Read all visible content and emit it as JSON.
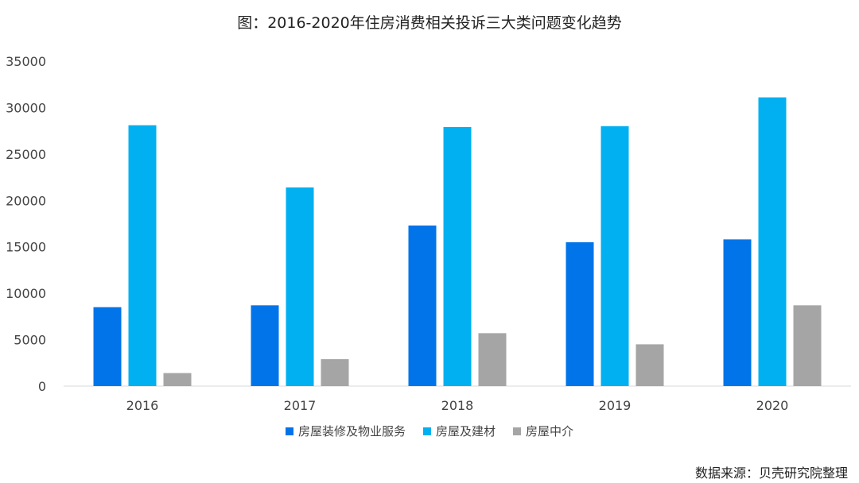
{
  "chart_data": {
    "type": "bar",
    "title": "图：2016-2020年住房消费相关投诉三大类问题变化趋势",
    "categories": [
      "2016",
      "2017",
      "2018",
      "2019",
      "2020"
    ],
    "series": [
      {
        "name": "房屋装修及物业服务",
        "color": "#0074E8",
        "values": [
          8500,
          8700,
          17300,
          15500,
          15800
        ]
      },
      {
        "name": "房屋及建材",
        "color": "#00B0F0",
        "values": [
          28100,
          21400,
          27900,
          28000,
          31100
        ]
      },
      {
        "name": "房屋中介",
        "color": "#A5A5A5",
        "values": [
          1400,
          2900,
          5700,
          4500,
          8700
        ]
      }
    ],
    "ylim": [
      0,
      35000
    ],
    "yticks": [
      "0",
      "5000",
      "10000",
      "15000",
      "20000",
      "25000",
      "30000",
      "35000"
    ],
    "grid": false,
    "legend_position": "bottom",
    "source": "数据来源：贝壳研究院整理"
  }
}
